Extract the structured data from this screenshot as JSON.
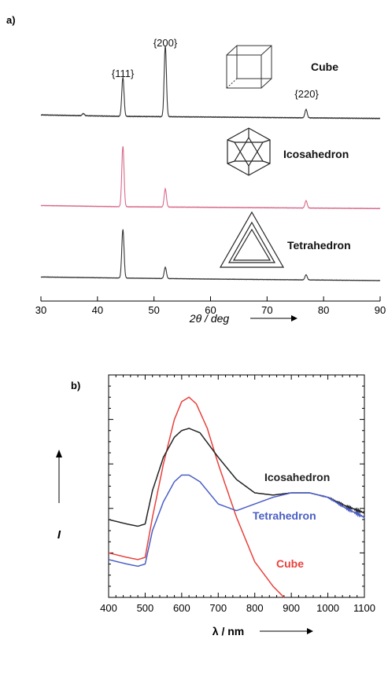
{
  "chart_data": [
    {
      "panel": "a)",
      "type": "line",
      "xlabel": "2θ / deg",
      "xlim": [
        30,
        90
      ],
      "x_ticks": [
        30,
        40,
        50,
        60,
        70,
        80,
        90
      ],
      "peak_labels": [
        {
          "text": "{111}",
          "x": 44.5
        },
        {
          "text": "{200}",
          "x": 52
        },
        {
          "text": "{220}",
          "x": 77
        }
      ],
      "series": [
        {
          "name": "Cube",
          "color": "#333333",
          "icon": "cube-icon",
          "baseline": [
            [
              30,
              0.02
            ],
            [
              44,
              0.0
            ],
            [
              60,
              -0.01
            ],
            [
              90,
              -0.03
            ]
          ],
          "peaks": [
            [
              44.5,
              0.55
            ],
            [
              52,
              1.0
            ],
            [
              76.9,
              0.12
            ],
            [
              37.5,
              0.03
            ]
          ]
        },
        {
          "name": "Icosahedron",
          "color": "#d86a8a",
          "icon": "icosahedron-icon",
          "baseline": [
            [
              30,
              0.02
            ],
            [
              44,
              0.0
            ],
            [
              60,
              -0.01
            ],
            [
              90,
              -0.03
            ]
          ],
          "peaks": [
            [
              44.5,
              1.0
            ],
            [
              52,
              0.3
            ],
            [
              76.9,
              0.12
            ]
          ]
        },
        {
          "name": "Tetrahedron",
          "color": "#333333",
          "icon": "tetrahedron-icon",
          "baseline": [
            [
              30,
              0.04
            ],
            [
              44,
              0.02
            ],
            [
              60,
              0.0
            ],
            [
              90,
              -0.03
            ]
          ],
          "peaks": [
            [
              44.5,
              0.95
            ],
            [
              52,
              0.22
            ],
            [
              76.9,
              0.1
            ]
          ]
        }
      ]
    },
    {
      "panel": "b)",
      "type": "line",
      "xlabel": "λ / nm",
      "ylabel": "I",
      "xlim": [
        400,
        1100
      ],
      "ylim": [
        0,
        1
      ],
      "x_ticks": [
        400,
        500,
        600,
        700,
        800,
        900,
        1000,
        1100
      ],
      "series": [
        {
          "name": "Cube",
          "color": "#e8413c",
          "x": [
            400,
            450,
            480,
            500,
            520,
            550,
            580,
            600,
            620,
            640,
            670,
            700,
            750,
            800,
            850,
            880
          ],
          "y": [
            0.2,
            0.18,
            0.17,
            0.18,
            0.36,
            0.6,
            0.8,
            0.88,
            0.9,
            0.87,
            0.76,
            0.6,
            0.36,
            0.16,
            0.05,
            0.0
          ]
        },
        {
          "name": "Icosahedron",
          "color": "#222222",
          "x": [
            400,
            450,
            480,
            500,
            520,
            550,
            580,
            600,
            620,
            650,
            700,
            750,
            800,
            850,
            900,
            950,
            1000,
            1050,
            1100
          ],
          "y": [
            0.35,
            0.33,
            0.32,
            0.33,
            0.48,
            0.63,
            0.72,
            0.75,
            0.76,
            0.74,
            0.63,
            0.53,
            0.47,
            0.46,
            0.47,
            0.47,
            0.45,
            0.41,
            0.38
          ]
        },
        {
          "name": "Tetrahedron",
          "color": "#4a5ec4",
          "x": [
            400,
            450,
            480,
            500,
            520,
            550,
            580,
            600,
            620,
            650,
            700,
            750,
            800,
            850,
            900,
            950,
            1000,
            1050,
            1100
          ],
          "y": [
            0.17,
            0.15,
            0.14,
            0.15,
            0.3,
            0.43,
            0.52,
            0.55,
            0.55,
            0.52,
            0.42,
            0.39,
            0.42,
            0.45,
            0.47,
            0.47,
            0.45,
            0.4,
            0.36
          ]
        }
      ],
      "series_labels": [
        "Icosahedron",
        "Tetrahedron",
        "Cube"
      ]
    }
  ]
}
